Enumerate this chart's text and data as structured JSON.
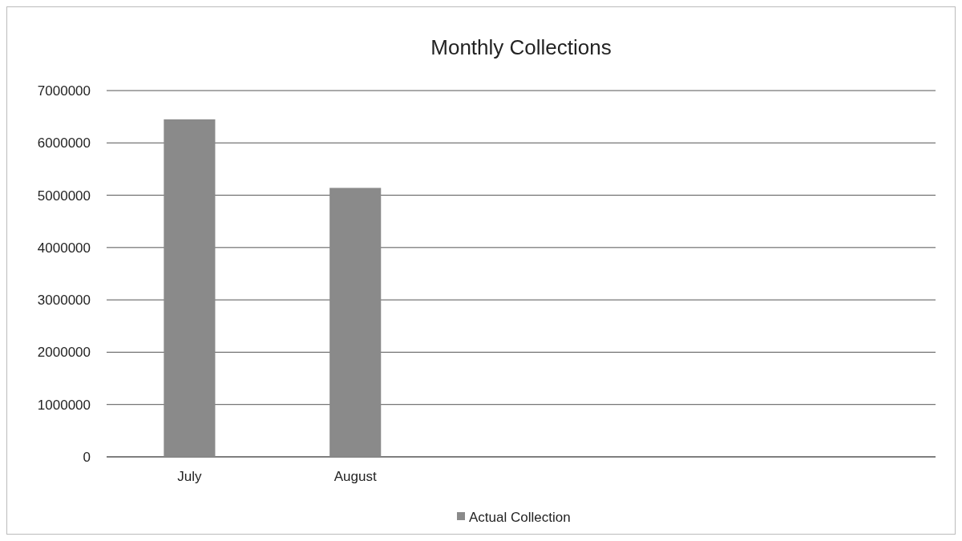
{
  "chart_data": {
    "type": "bar",
    "title": "Monthly Collections",
    "categories": [
      "July",
      "August",
      null,
      null,
      null
    ],
    "series": [
      {
        "name": "Actual Collection",
        "color": "#8a8a8a",
        "values": [
          6450000,
          5140000,
          null,
          null,
          null
        ]
      }
    ],
    "ylim": [
      0,
      7000000
    ],
    "yticks": [
      0,
      1000000,
      2000000,
      3000000,
      4000000,
      5000000,
      6000000,
      7000000
    ],
    "grid": "y",
    "legend": "bottom"
  }
}
